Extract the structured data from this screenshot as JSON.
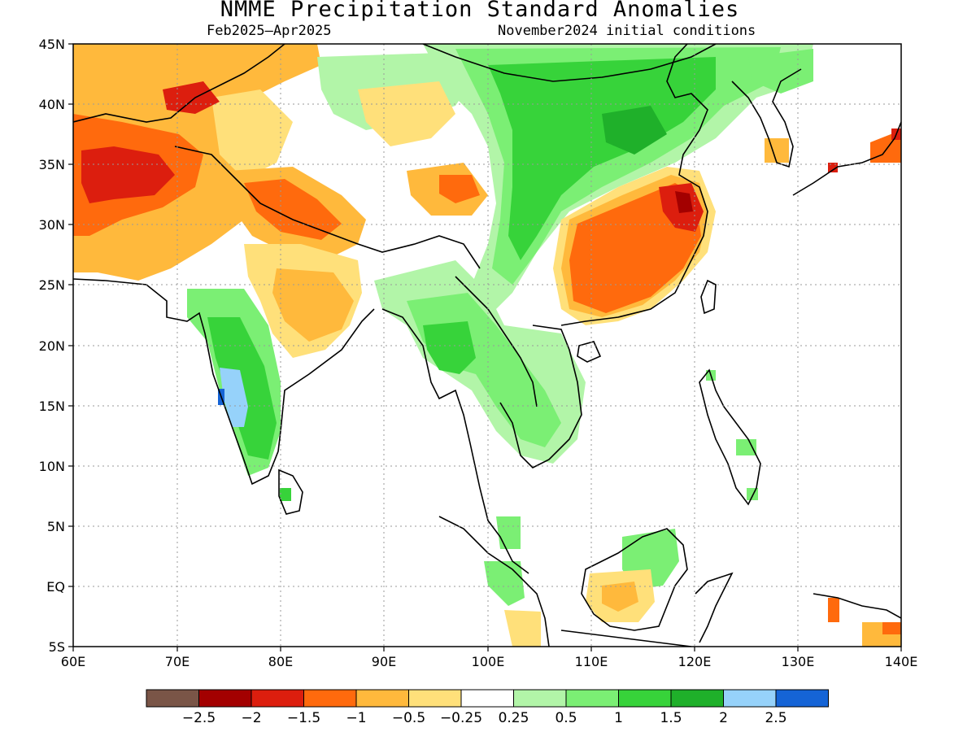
{
  "title": "NMME Precipitation Standard Anomalies",
  "subtitle_left": "Feb2025–Apr2025",
  "subtitle_right": "November2024 initial conditions",
  "lon_ticks": [
    "60E",
    "70E",
    "80E",
    "90E",
    "100E",
    "110E",
    "120E",
    "130E",
    "140E"
  ],
  "lat_ticks": [
    "45N",
    "40N",
    "35N",
    "30N",
    "25N",
    "20N",
    "15N",
    "10N",
    "5N",
    "EQ",
    "5S"
  ],
  "colorbar": {
    "colors": [
      "#7a5547",
      "#a30000",
      "#dc1e0e",
      "#ff6a0d",
      "#ffb93c",
      "#ffe07a",
      "#ffffff",
      "#b2f5a8",
      "#7bef74",
      "#37d33a",
      "#1fb02a",
      "#96d2fa",
      "#1564d6"
    ],
    "labels": [
      "−2.5",
      "−2",
      "−1.5",
      "−1",
      "−0.5",
      "−0.25",
      "0.25",
      "0.5",
      "1",
      "1.5",
      "2",
      "2.5"
    ]
  },
  "chart_data": {
    "type": "heatmap",
    "title": "NMME Precipitation Standard Anomalies",
    "x_range": [
      60,
      140
    ],
    "y_range": [
      -5,
      45
    ],
    "levels": [
      -2.5,
      -2,
      -1.5,
      -1,
      -0.5,
      -0.25,
      0.25,
      0.5,
      1,
      1.5,
      2,
      2.5
    ],
    "regions": [
      {
        "name": "w_asia",
        "lon": [
          60,
          77
        ],
        "lat": [
          26,
          45
        ],
        "value": -1.2
      },
      {
        "name": "afghan_core",
        "lon": [
          62,
          68
        ],
        "lat": [
          31,
          36
        ],
        "value": -1.7
      },
      {
        "name": "iran_red",
        "lon": [
          60,
          63
        ],
        "lat": [
          32,
          37
        ],
        "value": -1.6
      },
      {
        "name": "n_india",
        "lon": [
          80,
          89
        ],
        "lat": [
          28,
          33
        ],
        "value": -1.1
      },
      {
        "name": "central_india",
        "lon": [
          78,
          88
        ],
        "lat": [
          20,
          28
        ],
        "value": -0.6
      },
      {
        "name": "tibet_spot",
        "lon": [
          95,
          99
        ],
        "lat": [
          31,
          35
        ],
        "value": -1.2
      },
      {
        "name": "china_se",
        "lon": [
          107,
          122
        ],
        "lat": [
          21,
          34
        ],
        "value": -1.3
      },
      {
        "name": "china_red",
        "lon": [
          117,
          121
        ],
        "lat": [
          29,
          33
        ],
        "value": -1.7
      },
      {
        "name": "n_china",
        "lon": [
          98,
          118
        ],
        "lat": [
          33,
          45
        ],
        "value": 1.2
      },
      {
        "name": "sw_china",
        "lon": [
          99,
          106
        ],
        "lat": [
          24,
          33
        ],
        "value": 1.1
      },
      {
        "name": "w_ghats",
        "lon": [
          72,
          78
        ],
        "lat": [
          11,
          24
        ],
        "value": 1.0
      },
      {
        "name": "w_ghats_blue",
        "lon": [
          74,
          76
        ],
        "lat": [
          14,
          17
        ],
        "value": 2.2
      },
      {
        "name": "myanmar",
        "lon": [
          94,
          98
        ],
        "lat": [
          16,
          22
        ],
        "value": 1.4
      },
      {
        "name": "indochina",
        "lon": [
          98,
          105
        ],
        "lat": [
          12,
          22
        ],
        "value": 0.7
      },
      {
        "name": "borneo_green",
        "lon": [
          113,
          117
        ],
        "lat": [
          1,
          5
        ],
        "value": 0.8
      },
      {
        "name": "borneo_dry",
        "lon": [
          111,
          116
        ],
        "lat": [
          -3,
          1
        ],
        "value": -0.5
      },
      {
        "name": "new_guinea",
        "lon": [
          133,
          140
        ],
        "lat": [
          -5,
          -3
        ],
        "value": -1.0
      },
      {
        "name": "japan",
        "lon": [
          137,
          140
        ],
        "lat": [
          35,
          38
        ],
        "value": -1.0
      }
    ]
  }
}
